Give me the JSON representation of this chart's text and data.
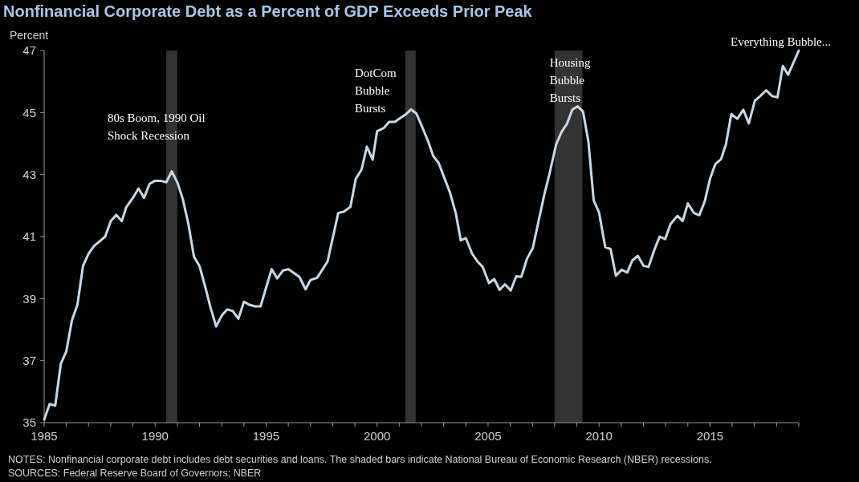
{
  "chart_data": {
    "type": "line",
    "title": "Nonfinancial Corporate Debt as a Percent of GDP Exceeds Prior Peak",
    "ylabel": "Percent",
    "series": [
      {
        "color": "#c8d8e8",
        "x": [
          1985.0,
          1985.25,
          1985.5,
          1985.75,
          1986.0,
          1986.25,
          1986.5,
          1986.75,
          1987.0,
          1987.25,
          1987.5,
          1987.75,
          1988.0,
          1988.25,
          1988.5,
          1988.7,
          1989.0,
          1989.25,
          1989.5,
          1989.75,
          1990.0,
          1990.25,
          1990.5,
          1990.75,
          1991.0,
          1991.25,
          1991.5,
          1991.75,
          1992.0,
          1992.25,
          1992.5,
          1992.75,
          1993.0,
          1993.25,
          1993.5,
          1993.75,
          1994.0,
          1994.25,
          1994.5,
          1994.75,
          1995.0,
          1995.25,
          1995.5,
          1995.75,
          1996.0,
          1996.5,
          1996.78,
          1997.0,
          1997.3,
          1997.77,
          1998.25,
          1998.5,
          1998.8,
          1999.04,
          1999.3,
          1999.54,
          1999.8,
          2000.0,
          2000.3,
          2000.54,
          2000.8,
          2001.0,
          2001.27,
          2001.53,
          2001.77,
          2002.0,
          2002.3,
          2002.53,
          2002.77,
          2003.0,
          2003.28,
          2003.55,
          2003.77,
          2004.0,
          2004.28,
          2004.52,
          2004.76,
          2005.04,
          2005.28,
          2005.52,
          2005.76,
          2006.02,
          2006.27,
          2006.5,
          2006.75,
          2007.02,
          2007.27,
          2007.53,
          2007.77,
          2008.07,
          2008.31,
          2008.55,
          2008.8,
          2009.04,
          2009.28,
          2009.52,
          2009.76,
          2010.0,
          2010.28,
          2010.52,
          2010.76,
          2011.02,
          2011.27,
          2011.5,
          2011.75,
          2012.0,
          2012.23,
          2012.47,
          2012.73,
          2012.98,
          2013.22,
          2013.53,
          2013.77,
          2014.0,
          2014.28,
          2014.52,
          2014.76,
          2015.0,
          2015.24,
          2015.5,
          2015.72,
          2015.96,
          2016.23,
          2016.5,
          2016.75,
          2017.02,
          2017.29,
          2017.53,
          2017.8,
          2018.04,
          2018.28,
          2018.52,
          2019.0
        ],
        "values": [
          35.1,
          35.6,
          35.55,
          36.9,
          37.3,
          38.3,
          38.8,
          40.05,
          40.45,
          40.7,
          40.85,
          41.0,
          41.5,
          41.7,
          41.5,
          41.95,
          42.25,
          42.55,
          42.25,
          42.7,
          42.8,
          42.8,
          42.75,
          43.1,
          42.75,
          42.2,
          41.4,
          40.35,
          40.05,
          39.4,
          38.7,
          38.1,
          38.45,
          38.65,
          38.6,
          38.35,
          38.9,
          38.8,
          38.75,
          38.75,
          39.35,
          39.95,
          39.65,
          39.9,
          39.95,
          39.7,
          39.3,
          39.6,
          39.67,
          40.2,
          41.76,
          41.8,
          41.96,
          42.86,
          43.16,
          43.9,
          43.48,
          44.4,
          44.5,
          44.7,
          44.7,
          44.8,
          44.93,
          45.1,
          44.97,
          44.59,
          44.07,
          43.6,
          43.38,
          42.95,
          42.43,
          41.74,
          40.88,
          40.95,
          40.45,
          40.2,
          40.02,
          39.5,
          39.63,
          39.28,
          39.46,
          39.26,
          39.72,
          39.7,
          40.28,
          40.64,
          41.48,
          42.34,
          43.03,
          43.98,
          44.37,
          44.63,
          45.1,
          45.2,
          45.03,
          44.07,
          42.17,
          41.78,
          40.66,
          40.6,
          39.74,
          39.93,
          39.84,
          40.23,
          40.38,
          40.06,
          40.02,
          40.53,
          41.0,
          40.92,
          41.4,
          41.67,
          41.5,
          42.07,
          41.76,
          41.69,
          42.13,
          42.86,
          43.34,
          43.5,
          43.98,
          44.95,
          44.8,
          45.09,
          44.65,
          45.38,
          45.55,
          45.72,
          45.53,
          45.49,
          46.5,
          46.22,
          47.0
        ]
      }
    ],
    "xlim": [
      1985,
      2019
    ],
    "xticks": [
      1985,
      {
        "value": 1986,
        "label": null
      },
      {
        "value": 1987,
        "label": null
      },
      {
        "value": 1988,
        "label": null
      },
      {
        "value": 1989,
        "label": null
      },
      1990,
      {
        "value": 1991,
        "label": null
      },
      {
        "value": 1992,
        "label": null
      },
      {
        "value": 1993,
        "label": null
      },
      {
        "value": 1994,
        "label": null
      },
      1995,
      {
        "value": 1996,
        "label": null
      },
      {
        "value": 1997,
        "label": null
      },
      {
        "value": 1998,
        "label": null
      },
      {
        "value": 1999,
        "label": null
      },
      2000,
      {
        "value": 2001,
        "label": null
      },
      {
        "value": 2002,
        "label": null
      },
      {
        "value": 2003,
        "label": null
      },
      {
        "value": 2004,
        "label": null
      },
      2005,
      {
        "value": 2006,
        "label": null
      },
      {
        "value": 2007,
        "label": null
      },
      {
        "value": 2008,
        "label": null
      },
      {
        "value": 2009,
        "label": null
      },
      2010,
      {
        "value": 2011,
        "label": null
      },
      {
        "value": 2012,
        "label": null
      },
      {
        "value": 2013,
        "label": null
      },
      {
        "value": 2014,
        "label": null
      },
      2015,
      {
        "value": 2016,
        "label": null
      },
      {
        "value": 2017,
        "label": null
      },
      {
        "value": 2018,
        "label": null
      },
      {
        "value": 2019,
        "label": null
      }
    ],
    "ylim": [
      35,
      47
    ],
    "yticks": [
      35,
      37,
      39,
      41,
      43,
      45,
      47
    ],
    "grid": false,
    "marker": "none",
    "line_style": "solid",
    "bands": [
      {
        "axis": "x",
        "from": 1990.5,
        "to": 1991.0,
        "color": "#333333"
      },
      {
        "axis": "x",
        "from": 2001.27,
        "to": 2001.74,
        "color": "#333333"
      },
      {
        "axis": "x",
        "from": 2008.0,
        "to": 2009.25,
        "color": "#333333"
      }
    ],
    "annotations": [
      {
        "text": "80s Boom, 1990 Oil Shock Recession",
        "x": 1990.75,
        "y": 43.1
      },
      {
        "text": "DotCom Bubble Bursts",
        "x": 2001.53,
        "y": 45.1
      },
      {
        "text": "Housing Bubble Bursts",
        "x": 2009.04,
        "y": 45.2
      },
      {
        "text": "Everything Bubble...",
        "x": 2019.0,
        "y": 47.0
      },
      "NOTES: Nonfinancial corporate debt includes debt securities and loans. The shaded bars indicate National Bureau of Economic Research (NBER) recessions.",
      "SOURCES: Federal Reserve Board of Governors; NBER"
    ]
  }
}
